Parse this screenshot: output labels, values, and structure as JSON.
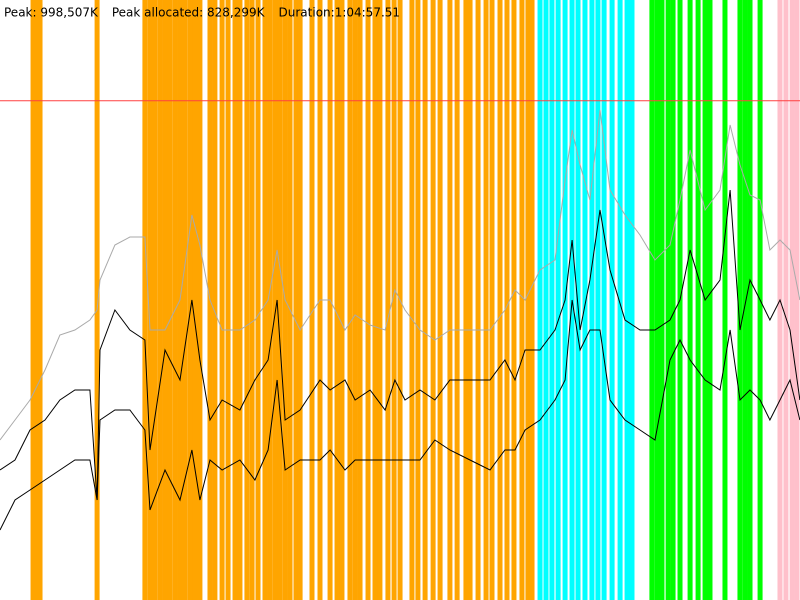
{
  "chart_data": {
    "type": "line",
    "header": [
      "Peak: 998,507K",
      "Peak allocated: 828,299K",
      "Duration:1:04:57.51"
    ],
    "peak_value": 998507,
    "peak_color": "#ff4040",
    "xlim": [
      0,
      3897.51
    ],
    "ylim": [
      0,
      1200000
    ],
    "x": [
      0,
      73,
      146,
      219,
      292,
      365,
      438,
      473,
      487,
      560,
      633,
      706,
      731,
      804,
      877,
      935,
      974,
      1023,
      1082,
      1169,
      1242,
      1306,
      1350,
      1389,
      1462,
      1559,
      1608,
      1681,
      1730,
      1803,
      1876,
      1924,
      1973,
      2046,
      2119,
      2192,
      2290,
      2387,
      2460,
      2509,
      2558,
      2631,
      2704,
      2753,
      2787,
      2826,
      2874,
      2923,
      2972,
      3045,
      3118,
      3191,
      3264,
      3313,
      3362,
      3435,
      3508,
      3557,
      3605,
      3654,
      3703,
      3751,
      3800,
      3849,
      3897
    ],
    "series": [
      {
        "color": "#aaaaaa",
        "values": [
          320000,
          360000,
          400000,
          460000,
          530000,
          540000,
          560000,
          580000,
          640000,
          710000,
          726000,
          726000,
          540000,
          540000,
          600000,
          770000,
          710000,
          600000,
          540000,
          540000,
          560000,
          600000,
          700000,
          600000,
          540000,
          600000,
          600000,
          540000,
          570000,
          550000,
          540000,
          620000,
          580000,
          540000,
          520000,
          540000,
          540000,
          540000,
          580000,
          620000,
          600000,
          660000,
          680000,
          840000,
          940000,
          870000,
          800000,
          980000,
          820000,
          770000,
          730000,
          680000,
          710000,
          800000,
          900000,
          780000,
          820000,
          950000,
          870000,
          810000,
          800000,
          700000,
          720000,
          700000,
          600000
        ]
      },
      {
        "color": "#000000",
        "values": [
          260000,
          280000,
          340000,
          360000,
          400000,
          420000,
          420000,
          200000,
          500000,
          580000,
          540000,
          520000,
          300000,
          500000,
          440000,
          600000,
          480000,
          360000,
          400000,
          380000,
          440000,
          480000,
          600000,
          360000,
          380000,
          440000,
          420000,
          440000,
          400000,
          420000,
          380000,
          440000,
          400000,
          420000,
          400000,
          440000,
          440000,
          440000,
          480000,
          440000,
          500000,
          500000,
          540000,
          600000,
          720000,
          540000,
          640000,
          780000,
          660000,
          560000,
          540000,
          540000,
          560000,
          600000,
          700000,
          600000,
          640000,
          820000,
          540000,
          640000,
          600000,
          560000,
          600000,
          540000,
          400000
        ]
      },
      {
        "color": "#000000",
        "values": [
          140000,
          200000,
          220000,
          240000,
          260000,
          280000,
          280000,
          200000,
          360000,
          380000,
          380000,
          340000,
          180000,
          260000,
          200000,
          300000,
          200000,
          280000,
          260000,
          280000,
          240000,
          300000,
          440000,
          260000,
          280000,
          280000,
          300000,
          260000,
          280000,
          280000,
          280000,
          280000,
          280000,
          280000,
          320000,
          300000,
          280000,
          260000,
          300000,
          300000,
          340000,
          360000,
          400000,
          440000,
          600000,
          500000,
          540000,
          540000,
          400000,
          360000,
          340000,
          320000,
          480000,
          520000,
          480000,
          440000,
          420000,
          540000,
          400000,
          420000,
          400000,
          360000,
          400000,
          440000,
          360000
        ]
      }
    ],
    "events": [
      {
        "color": "#ffa500",
        "x": [
          161,
          180,
          195,
          473,
          706,
          731,
          755,
          780,
          804,
          828,
          853,
          877,
          901,
          926,
          950,
          974,
          1023,
          1047,
          1082,
          1111,
          1145,
          1169,
          1203,
          1228,
          1257,
          1291,
          1315,
          1340,
          1364,
          1389,
          1413,
          1442,
          1462,
          1520,
          1559,
          1608,
          1642,
          1666,
          1705,
          1730,
          1754,
          1793,
          1827,
          1851,
          1890,
          1920,
          1949,
          2007,
          2036,
          2071,
          2110,
          2144,
          2192,
          2227,
          2270,
          2290,
          2329,
          2368,
          2397,
          2436,
          2470,
          2504,
          2543,
          2572,
          2592
        ]
      },
      {
        "color": "#00ffff",
        "x": [
          2631,
          2660,
          2689,
          2719,
          2753,
          2787,
          2816,
          2850,
          2884,
          2913,
          2943,
          2982,
          3021,
          3055,
          3079
        ]
      },
      {
        "color": "#00ff00",
        "x": [
          3176,
          3201,
          3225,
          3255,
          3279,
          3313,
          3362,
          3401,
          3435,
          3459,
          3532,
          3605,
          3630,
          3654,
          3703
        ]
      },
      {
        "color": "#ffc0cb",
        "x": [
          3800,
          3829,
          3859,
          3883
        ]
      }
    ]
  }
}
